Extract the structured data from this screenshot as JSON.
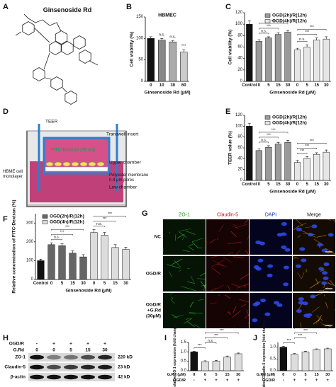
{
  "structure": {
    "label": "A",
    "name": "Ginsenoside Rd"
  },
  "diagram": {
    "label": "D",
    "electrode": "TEER",
    "tracer": "FITC-Dextran (70 kD)",
    "insert": "Transwell insert",
    "upper": "Upper chamber",
    "cells": [
      "HBME cell",
      "monolayer"
    ],
    "membrane": [
      "Polyester membrane",
      "0.4 μm pores"
    ],
    "lower": "Low chamber"
  },
  "micrographs": {
    "label": "G",
    "channels": [
      "ZO-1",
      "Claudin-5",
      "DAPI",
      "Merge"
    ],
    "channel_colors": [
      "#1a9a1a",
      "#d01010",
      "#1030d0",
      "#111111"
    ],
    "conditions": [
      [
        "NC"
      ],
      [
        "OGD/R"
      ],
      [
        "OGD/R",
        "+G.Rd",
        "(30μM)"
      ]
    ]
  },
  "western_blot": {
    "label": "H",
    "treatments": [
      {
        "name": "OGD/R",
        "values": [
          "-",
          "+",
          "+",
          "+",
          "+"
        ]
      },
      {
        "name": "G.Rd",
        "values": [
          "0",
          "0",
          "5",
          "15",
          "30"
        ]
      }
    ],
    "bands": [
      {
        "name": "ZO-1",
        "size": "220 kD"
      },
      {
        "name": "Claudin-5",
        "size": "23 kD"
      },
      {
        "name": "β-actin",
        "size": "42 kD"
      }
    ]
  },
  "chart_data": [
    {
      "type": "bar",
      "label": "B",
      "title": "HBMEC",
      "ylabel": "Cell viability (%)",
      "xlabel": "Ginsenoside Rd (μM)",
      "categories": [
        "0",
        "10",
        "30",
        "60"
      ],
      "values": [
        100,
        96,
        92,
        68
      ],
      "errors": [
        4,
        4,
        3,
        5
      ],
      "colors": [
        "#111111",
        "#888888",
        "#aaaaaa",
        "#cccccc"
      ],
      "ylim": [
        0,
        150
      ],
      "yticks": [
        0,
        50,
        100,
        150
      ],
      "annotations": [
        {
          "index": 1,
          "text": "n.s."
        },
        {
          "index": 2,
          "text": "n.s."
        },
        {
          "index": 3,
          "text": "***"
        }
      ]
    },
    {
      "type": "bar",
      "label": "C",
      "ylabel": "Cell viability (%)",
      "xlabel": "Ginsenoside Rd (μM)",
      "categories": [
        "Control",
        "0",
        "5",
        "15",
        "30",
        "0",
        "5",
        "15",
        "30"
      ],
      "values": [
        100,
        70,
        76,
        82,
        86,
        55,
        60,
        72,
        74
      ],
      "errors": [
        6,
        3,
        2,
        3,
        3,
        3,
        4,
        4,
        4
      ],
      "colors": [
        "#111111",
        "#9a9a9a",
        "#9a9a9a",
        "#9a9a9a",
        "#9a9a9a",
        "#e6e6e6",
        "#e6e6e6",
        "#e6e6e6",
        "#e6e6e6"
      ],
      "legend": [
        {
          "name": "OGD(2h)/R(12h)",
          "color": "#9a9a9a"
        },
        {
          "name": "OGD(4h)/R(12h)",
          "color": "#e6e6e6"
        }
      ],
      "ylim": [
        0,
        120
      ],
      "yticks": [
        0,
        20,
        40,
        60,
        80,
        100,
        120
      ],
      "comparisons": [
        {
          "from": 1,
          "to": 2,
          "text": "n.s."
        },
        {
          "from": 1,
          "to": 3,
          "text": "***"
        },
        {
          "from": 1,
          "to": 4,
          "text": "***"
        },
        {
          "from": 5,
          "to": 6,
          "text": "n.s."
        },
        {
          "from": 5,
          "to": 7,
          "text": "***"
        },
        {
          "from": 5,
          "to": 8,
          "text": "***"
        }
      ]
    },
    {
      "type": "bar",
      "label": "E",
      "ylabel": "TEER value (%)",
      "xlabel": "Ginsenoside Rd (μM)",
      "categories": [
        "Control",
        "0",
        "5",
        "15",
        "30",
        "0",
        "5",
        "15",
        "30"
      ],
      "values": [
        100,
        55,
        61,
        67,
        70,
        33,
        41,
        48,
        52
      ],
      "errors": [
        5,
        3,
        3,
        3,
        4,
        4,
        3,
        3,
        4
      ],
      "colors": [
        "#111111",
        "#9a9a9a",
        "#9a9a9a",
        "#9a9a9a",
        "#9a9a9a",
        "#e6e6e6",
        "#e6e6e6",
        "#e6e6e6",
        "#e6e6e6"
      ],
      "legend": [
        {
          "name": "OGD(2h)/R(12h)",
          "color": "#9a9a9a"
        },
        {
          "name": "OGD(4h)/R(12h)",
          "color": "#e6e6e6"
        }
      ],
      "ylim": [
        0,
        120
      ],
      "yticks": [
        0,
        20,
        40,
        60,
        80,
        100,
        120
      ],
      "comparisons": [
        {
          "from": 1,
          "to": 2,
          "text": "n.s."
        },
        {
          "from": 1,
          "to": 3,
          "text": "***"
        },
        {
          "from": 1,
          "to": 4,
          "text": "***"
        },
        {
          "from": 5,
          "to": 6,
          "text": "***"
        },
        {
          "from": 5,
          "to": 7,
          "text": "***"
        },
        {
          "from": 5,
          "to": 8,
          "text": "***"
        }
      ]
    },
    {
      "type": "bar",
      "label": "F",
      "ylabel": "Relative concentration of FITC-Dextran (%)",
      "xlabel": "Ginsenoside Rd (μM)",
      "categories": [
        "Control",
        "0",
        "5",
        "15",
        "30",
        "0",
        "5",
        "15",
        "30"
      ],
      "values": [
        100,
        185,
        180,
        140,
        120,
        250,
        235,
        170,
        160
      ],
      "errors": [
        8,
        10,
        10,
        12,
        12,
        15,
        15,
        15,
        12
      ],
      "colors": [
        "#111111",
        "#666666",
        "#666666",
        "#666666",
        "#666666",
        "#dddddd",
        "#dddddd",
        "#dddddd",
        "#dddddd"
      ],
      "legend": [
        {
          "name": "OGD(2h)/R(12h)",
          "color": "#666666"
        },
        {
          "name": "OGD(4h)/R(12h)",
          "color": "#dddddd"
        }
      ],
      "ylim": [
        0,
        350
      ],
      "yticks": [
        0,
        100,
        200,
        300
      ],
      "comparisons": [
        {
          "from": 1,
          "to": 2,
          "text": "n.s."
        },
        {
          "from": 1,
          "to": 3,
          "text": "***"
        },
        {
          "from": 1,
          "to": 4,
          "text": "***"
        },
        {
          "from": 5,
          "to": 6,
          "text": "n.s."
        },
        {
          "from": 5,
          "to": 7,
          "text": "***"
        },
        {
          "from": 5,
          "to": 8,
          "text": "***"
        }
      ]
    },
    {
      "type": "bar",
      "label": "I",
      "ylabel": "Relative ZO-1 expression (fold change)",
      "xlabel": "G.Rd (μM)",
      "categories": [
        "0",
        "0",
        "5",
        "15",
        "30"
      ],
      "xrow2": {
        "label": "OGD/R",
        "values": [
          "-",
          "+",
          "+",
          "+",
          "+"
        ]
      },
      "values": [
        1.0,
        0.48,
        0.5,
        0.72,
        0.9
      ],
      "errors": [
        0.04,
        0.05,
        0.05,
        0.06,
        0.04
      ],
      "colors": [
        "#111111",
        "#dddddd",
        "#dddddd",
        "#dddddd",
        "#dddddd"
      ],
      "ylim": [
        0,
        1.5
      ],
      "yticks": [
        {
          "value": 0,
          "label": "0.0"
        },
        {
          "value": 0.5,
          "label": "0.5"
        },
        {
          "value": 1,
          "label": "1.0"
        },
        {
          "value": 1.5,
          "label": "1.5"
        }
      ],
      "comparisons": [
        {
          "from": 0,
          "to": 1,
          "text": "***"
        },
        {
          "from": 1,
          "to": 2,
          "text": "n.s."
        },
        {
          "from": 1,
          "to": 3,
          "text": "***"
        },
        {
          "from": 1,
          "to": 4,
          "text": "***"
        }
      ]
    },
    {
      "type": "bar",
      "label": "J",
      "ylabel": "Relative Claudin-5 expression (fold change)",
      "xlabel": "G.Rd (μM)",
      "categories": [
        "0",
        "0",
        "5",
        "15",
        "30"
      ],
      "xrow2": {
        "label": "OGD/R",
        "values": [
          "-",
          "+",
          "+",
          "+",
          "+"
        ]
      },
      "values": [
        1.0,
        0.7,
        0.8,
        0.9,
        0.93
      ],
      "errors": [
        0.04,
        0.03,
        0.03,
        0.03,
        0.03
      ],
      "colors": [
        "#111111",
        "#dddddd",
        "#dddddd",
        "#dddddd",
        "#dddddd"
      ],
      "ylim": [
        0,
        1.2
      ],
      "yticks": [
        {
          "value": 0,
          "label": "0.0"
        },
        {
          "value": 0.5,
          "label": "0.5"
        },
        {
          "value": 1,
          "label": "1.0"
        }
      ],
      "comparisons": [
        {
          "from": 0,
          "to": 1,
          "text": "***"
        },
        {
          "from": 1,
          "to": 2,
          "text": "***"
        },
        {
          "from": 1,
          "to": 3,
          "text": "***"
        },
        {
          "from": 1,
          "to": 4,
          "text": "***"
        }
      ]
    }
  ]
}
